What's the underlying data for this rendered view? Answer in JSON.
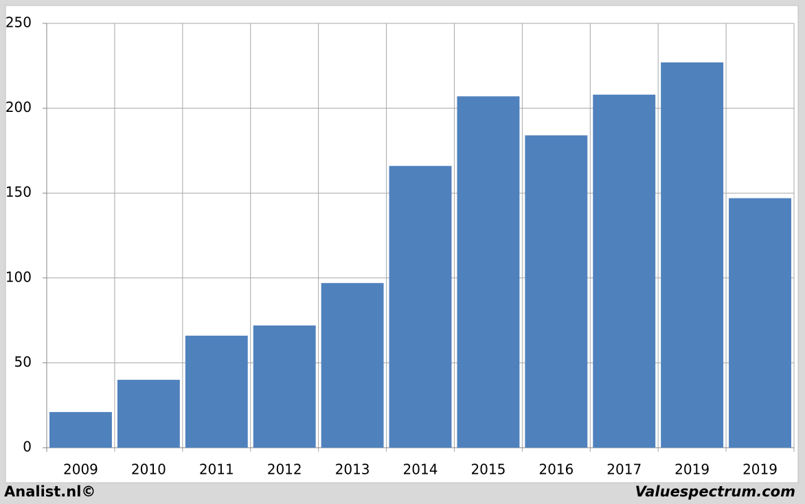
{
  "chart_data": {
    "type": "bar",
    "categories": [
      "2009",
      "2010",
      "2011",
      "2012",
      "2013",
      "2014",
      "2015",
      "2016",
      "2017",
      "2019",
      "2019"
    ],
    "values": [
      21,
      40,
      66,
      72,
      97,
      166,
      207,
      184,
      208,
      227,
      147
    ],
    "color": "#4f81bd",
    "ylim": [
      0,
      250
    ],
    "yticks": [
      0,
      50,
      100,
      150,
      200,
      250
    ],
    "grid": true
  },
  "footer": {
    "left": "Analist.nl©",
    "right": "Valuespectrum.com"
  }
}
